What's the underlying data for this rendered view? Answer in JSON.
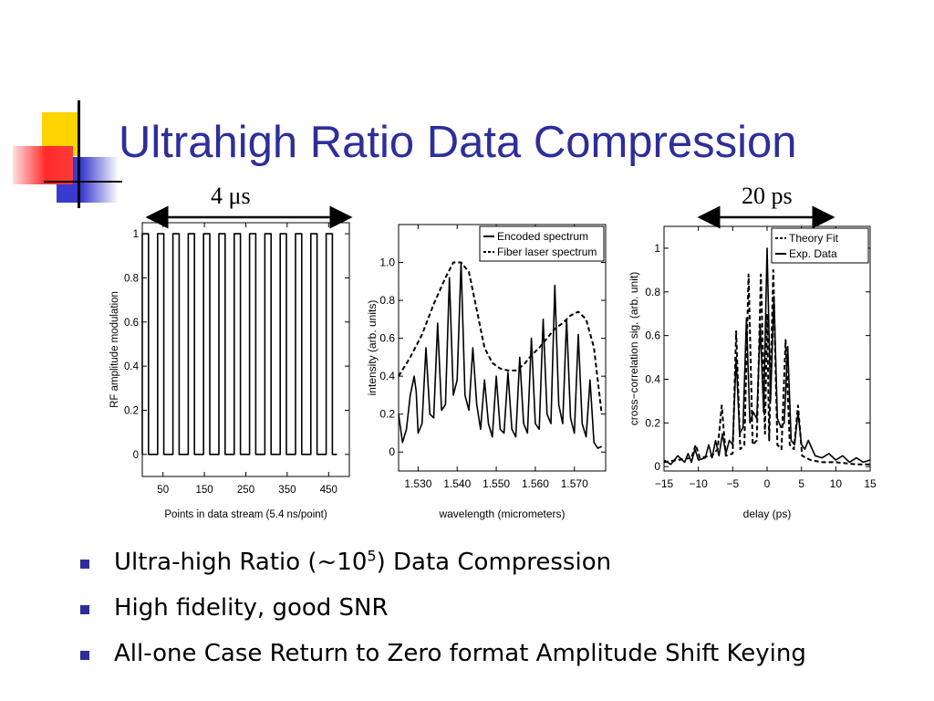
{
  "title": "Ultrahigh Ratio Data Compression",
  "colors": {
    "title": "#2e2e9a",
    "bullet": "#2e2e9a",
    "deco_yellow": "#ffd400",
    "deco_red": "#ff2a2a",
    "deco_blue": "#3a3ad0"
  },
  "scale_labels": {
    "left": "4 μs",
    "right": "20 ps"
  },
  "bullets": [
    {
      "pre": "Ultra-high Ratio (~10",
      "sup": "5",
      "post": ") Data Compression"
    },
    {
      "text": "High fidelity, good SNR"
    },
    {
      "text": "All-one Case Return to Zero format Amplitude Shift Keying"
    }
  ],
  "chart_data": [
    {
      "type": "line",
      "xlabel": "Points in data stream  (5.4 ns/point)",
      "ylabel": "RF amplitude modulation",
      "xlim": [
        0,
        500
      ],
      "ylim": [
        -0.1,
        1.05
      ],
      "xticks": [
        50,
        150,
        250,
        350,
        450
      ],
      "yticks": [
        0,
        0.2,
        0.4,
        0.6,
        0.8,
        1
      ],
      "series": [
        {
          "pulse_starts": [
            0,
            37,
            74,
            111,
            148,
            185,
            222,
            259,
            296,
            333,
            370,
            407,
            444
          ],
          "pulse_width": 15,
          "high": 1,
          "low": 0,
          "x_end": 470
        }
      ]
    },
    {
      "type": "line",
      "xlabel": "wavelength  (micrometers)",
      "ylabel": "intensity  (arb. units)",
      "xlim": [
        1.525,
        1.578
      ],
      "ylim": [
        -0.1,
        1.2
      ],
      "xticks": [
        1.53,
        1.54,
        1.55,
        1.56,
        1.57
      ],
      "xtick_labels": [
        "1.530",
        "1.540",
        "1.550",
        "1.560",
        "1.570"
      ],
      "yticks": [
        0,
        0.2,
        0.4,
        0.6,
        0.8,
        1.0
      ],
      "ytick_labels": [
        "0",
        "0.2",
        "0.4",
        "0.6",
        "0.8",
        "1.0"
      ],
      "legend": {
        "position": "top-right",
        "entries": [
          "Encoded spectrum",
          "Fiber laser spectrum"
        ]
      },
      "series": [
        {
          "name": "Encoded spectrum",
          "style": "solid",
          "x": [
            1.525,
            1.526,
            1.527,
            1.528,
            1.529,
            1.5295,
            1.53,
            1.531,
            1.532,
            1.533,
            1.534,
            1.535,
            1.536,
            1.537,
            1.538,
            1.539,
            1.54,
            1.541,
            1.542,
            1.543,
            1.544,
            1.545,
            1.546,
            1.547,
            1.548,
            1.549,
            1.55,
            1.551,
            1.552,
            1.553,
            1.554,
            1.555,
            1.556,
            1.557,
            1.558,
            1.559,
            1.56,
            1.561,
            1.562,
            1.563,
            1.564,
            1.565,
            1.566,
            1.567,
            1.568,
            1.569,
            1.57,
            1.571,
            1.572,
            1.573,
            1.574,
            1.575,
            1.576,
            1.577
          ],
          "y": [
            0.2,
            0.05,
            0.12,
            0.3,
            0.4,
            0.32,
            0.1,
            0.15,
            0.55,
            0.2,
            0.18,
            0.68,
            0.22,
            0.25,
            0.92,
            0.3,
            0.38,
            1.0,
            0.3,
            0.22,
            0.55,
            0.25,
            0.12,
            0.38,
            0.15,
            0.08,
            0.4,
            0.12,
            0.1,
            0.42,
            0.12,
            0.08,
            0.5,
            0.15,
            0.1,
            0.6,
            0.15,
            0.12,
            0.7,
            0.2,
            0.15,
            0.88,
            0.25,
            0.15,
            0.7,
            0.18,
            0.1,
            0.62,
            0.15,
            0.08,
            0.38,
            0.05,
            0.02,
            0.03
          ]
        },
        {
          "name": "Fiber laser spectrum",
          "style": "dashed",
          "x": [
            1.525,
            1.528,
            1.531,
            1.534,
            1.537,
            1.539,
            1.541,
            1.543,
            1.545,
            1.547,
            1.549,
            1.551,
            1.553,
            1.555,
            1.557,
            1.559,
            1.561,
            1.563,
            1.565,
            1.567,
            1.569,
            1.571,
            1.573,
            1.575,
            1.577
          ],
          "y": [
            0.4,
            0.5,
            0.62,
            0.78,
            0.92,
            1.0,
            1.0,
            0.95,
            0.75,
            0.55,
            0.47,
            0.44,
            0.43,
            0.43,
            0.46,
            0.51,
            0.55,
            0.6,
            0.65,
            0.68,
            0.72,
            0.74,
            0.7,
            0.55,
            0.2
          ]
        }
      ]
    },
    {
      "type": "line",
      "xlabel": "delay (ps)",
      "ylabel": "cross−correlation sig.  (arb. unit)",
      "xlim": [
        -15,
        15
      ],
      "ylim": [
        -0.02,
        1.1
      ],
      "xticks": [
        -15,
        -10,
        -5,
        0,
        5,
        10,
        15
      ],
      "xtick_labels": [
        "−15",
        "−10",
        "−5",
        "0",
        "5",
        "10",
        "15"
      ],
      "yticks": [
        0,
        0.2,
        0.4,
        0.6,
        0.8,
        1
      ],
      "legend": {
        "position": "top-right",
        "entries": [
          "Theory Fit",
          "Exp. Data"
        ]
      },
      "series": [
        {
          "name": "Theory Fit",
          "style": "dashed",
          "x": [
            -15,
            -13,
            -11,
            -10.4,
            -9.8,
            -8,
            -7.2,
            -6.6,
            -6,
            -5,
            -4.5,
            -3.9,
            -3.3,
            -2.7,
            -2.1,
            -1.5,
            -0.9,
            -0.3,
            0,
            0.3,
            0.9,
            1.5,
            2.1,
            2.7,
            3.3,
            3.9,
            4.5,
            5.1,
            5.7,
            6.3,
            8,
            10,
            13,
            15
          ],
          "y": [
            0.02,
            0.03,
            0.04,
            0.1,
            0.04,
            0.05,
            0.08,
            0.28,
            0.05,
            0.06,
            0.62,
            0.08,
            0.1,
            0.88,
            0.1,
            0.12,
            0.88,
            0.15,
            0.7,
            0.12,
            0.9,
            0.1,
            0.08,
            0.58,
            0.1,
            0.08,
            0.28,
            0.05,
            0.04,
            0.03,
            0.02,
            0.02,
            0.01,
            0.01
          ]
        },
        {
          "name": "Exp. Data",
          "style": "solid",
          "x": [
            -15,
            -14,
            -13,
            -12,
            -11.5,
            -11,
            -10.5,
            -10,
            -9,
            -8.5,
            -8,
            -7.5,
            -7,
            -6.5,
            -6,
            -5.5,
            -5,
            -4.5,
            -4,
            -3.5,
            -3,
            -2.5,
            -2,
            -1.5,
            -1,
            -0.5,
            0,
            0.5,
            1,
            1.5,
            2,
            2.5,
            3,
            3.5,
            4,
            4.5,
            5,
            5.5,
            6,
            7,
            8,
            9,
            10,
            11,
            12,
            13,
            14,
            15
          ],
          "y": [
            0.03,
            0.01,
            0.05,
            0.02,
            0.06,
            0.02,
            0.08,
            0.03,
            0.04,
            0.1,
            0.04,
            0.12,
            0.05,
            0.15,
            0.06,
            0.12,
            0.1,
            0.5,
            0.15,
            0.18,
            0.68,
            0.2,
            0.25,
            0.22,
            0.65,
            0.25,
            1.0,
            0.3,
            0.78,
            0.22,
            0.18,
            0.2,
            0.55,
            0.12,
            0.1,
            0.25,
            0.1,
            0.08,
            0.12,
            0.05,
            0.04,
            0.06,
            0.03,
            0.05,
            0.02,
            0.04,
            0.02,
            0.03
          ]
        }
      ]
    }
  ]
}
